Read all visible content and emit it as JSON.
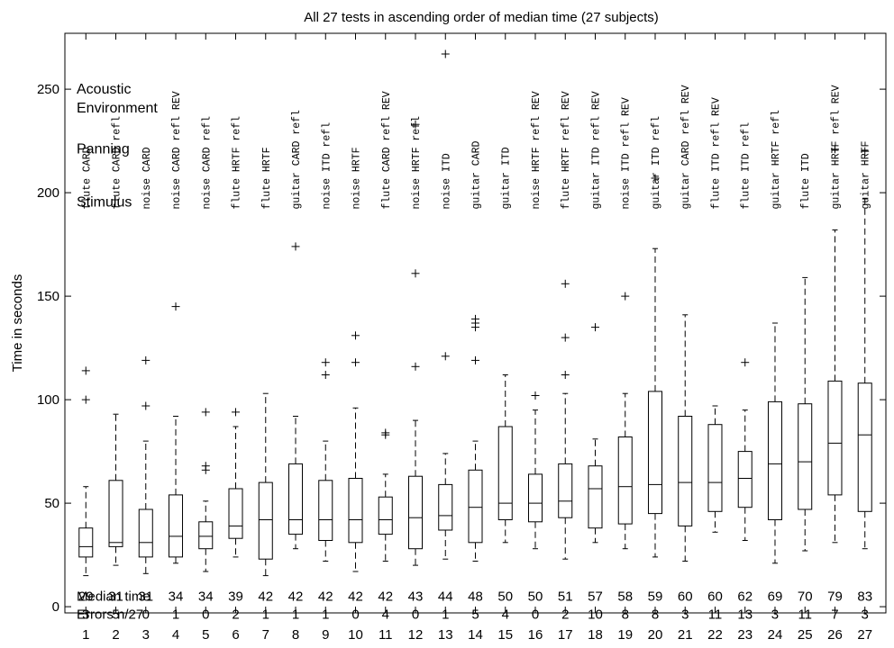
{
  "chart_data": {
    "type": "box",
    "title": "All 27 tests in ascending order of median time (27 subjects)",
    "ylabel": "Time in seconds",
    "xlabel": "",
    "ylim": [
      -3,
      277
    ],
    "xlim": [
      0.3,
      27.7
    ],
    "yticks": [
      0,
      50,
      100,
      150,
      200,
      250
    ],
    "categories": [
      1,
      2,
      3,
      4,
      5,
      6,
      7,
      8,
      9,
      10,
      11,
      12,
      13,
      14,
      15,
      16,
      17,
      18,
      19,
      20,
      21,
      22,
      23,
      24,
      25,
      26,
      27
    ],
    "row_labels": {
      "acoustic": "Acoustic\nEnvironment",
      "panning": "Panning",
      "stimulus": "Stimulus",
      "median": "Median time",
      "errors": "Errors n/27"
    },
    "tests": [
      {
        "stimulus": "flute",
        "panning": "CARD",
        "acoustic": "",
        "median_label": "29",
        "errors": "3",
        "min": 15,
        "q1": 24,
        "median": 29,
        "q3": 38,
        "max": 58,
        "outliers": [
          100,
          114
        ]
      },
      {
        "stimulus": "flute",
        "panning": "CARD",
        "acoustic": "refl",
        "median_label": "31",
        "errors": "5",
        "min": 20,
        "q1": 29,
        "median": 31,
        "q3": 61,
        "max": 93,
        "outliers": []
      },
      {
        "stimulus": "noise",
        "panning": "CARD",
        "acoustic": "",
        "median_label": "31",
        "errors": "0",
        "min": 16,
        "q1": 24,
        "median": 31,
        "q3": 47,
        "max": 80,
        "outliers": [
          97,
          119
        ]
      },
      {
        "stimulus": "noise",
        "panning": "CARD",
        "acoustic": "refl REV",
        "median_label": "34",
        "errors": "1",
        "min": 21,
        "q1": 24,
        "median": 34,
        "q3": 54,
        "max": 92,
        "outliers": [
          145
        ]
      },
      {
        "stimulus": "noise",
        "panning": "CARD",
        "acoustic": "refl",
        "median_label": "34",
        "errors": "0",
        "min": 17,
        "q1": 28,
        "median": 34,
        "q3": 41,
        "max": 51,
        "outliers": [
          66,
          68,
          94
        ]
      },
      {
        "stimulus": "flute",
        "panning": "HRTF",
        "acoustic": "refl",
        "median_label": "39",
        "errors": "2",
        "min": 24,
        "q1": 33,
        "median": 39,
        "q3": 57,
        "max": 87,
        "outliers": [
          94
        ]
      },
      {
        "stimulus": "flute",
        "panning": "HRTF",
        "acoustic": "",
        "median_label": "42",
        "errors": "1",
        "min": 15,
        "q1": 23,
        "median": 42,
        "q3": 60,
        "max": 103,
        "outliers": []
      },
      {
        "stimulus": "guitar",
        "panning": "CARD",
        "acoustic": "refl",
        "median_label": "42",
        "errors": "1",
        "min": 28,
        "q1": 35,
        "median": 42,
        "q3": 69,
        "max": 92,
        "outliers": [
          174
        ]
      },
      {
        "stimulus": "noise",
        "panning": "ITD",
        "acoustic": "refl",
        "median_label": "42",
        "errors": "1",
        "min": 22,
        "q1": 32,
        "median": 42,
        "q3": 61,
        "max": 80,
        "outliers": [
          112,
          118
        ]
      },
      {
        "stimulus": "noise",
        "panning": "HRTF",
        "acoustic": "",
        "median_label": "42",
        "errors": "0",
        "min": 17,
        "q1": 31,
        "median": 42,
        "q3": 62,
        "max": 96,
        "outliers": [
          118,
          131
        ]
      },
      {
        "stimulus": "flute",
        "panning": "CARD",
        "acoustic": "refl REV",
        "median_label": "42",
        "errors": "4",
        "min": 22,
        "q1": 35,
        "median": 42,
        "q3": 53,
        "max": 64,
        "outliers": [
          83,
          84
        ]
      },
      {
        "stimulus": "noise",
        "panning": "HRTF",
        "acoustic": "refl",
        "median_label": "43",
        "errors": "0",
        "min": 20,
        "q1": 28,
        "median": 43,
        "q3": 63,
        "max": 90,
        "outliers": [
          116,
          161,
          233
        ]
      },
      {
        "stimulus": "noise",
        "panning": "ITD",
        "acoustic": "",
        "median_label": "44",
        "errors": "1",
        "min": 23,
        "q1": 37,
        "median": 44,
        "q3": 59,
        "max": 74,
        "outliers": [
          121,
          267
        ]
      },
      {
        "stimulus": "guitar",
        "panning": "CARD",
        "acoustic": "",
        "median_label": "48",
        "errors": "5",
        "min": 22,
        "q1": 31,
        "median": 48,
        "q3": 66,
        "max": 80,
        "outliers": [
          119,
          135,
          137,
          139
        ]
      },
      {
        "stimulus": "guitar",
        "panning": "ITD",
        "acoustic": "",
        "median_label": "50",
        "errors": "4",
        "min": 31,
        "q1": 42,
        "median": 50,
        "q3": 87,
        "max": 112,
        "outliers": []
      },
      {
        "stimulus": "noise",
        "panning": "HRTF",
        "acoustic": "refl REV",
        "median_label": "50",
        "errors": "0",
        "min": 28,
        "q1": 41,
        "median": 50,
        "q3": 64,
        "max": 95,
        "outliers": [
          102
        ]
      },
      {
        "stimulus": "flute",
        "panning": "HRTF",
        "acoustic": "refl REV",
        "median_label": "51",
        "errors": "2",
        "min": 23,
        "q1": 43,
        "median": 51,
        "q3": 69,
        "max": 103,
        "outliers": [
          112,
          130,
          156
        ]
      },
      {
        "stimulus": "guitar",
        "panning": "ITD",
        "acoustic": "refl REV",
        "median_label": "57",
        "errors": "10",
        "min": 31,
        "q1": 38,
        "median": 57,
        "q3": 68,
        "max": 81,
        "outliers": [
          135
        ]
      },
      {
        "stimulus": "noise",
        "panning": "ITD",
        "acoustic": "refl REV",
        "median_label": "58",
        "errors": "8",
        "min": 28,
        "q1": 40,
        "median": 58,
        "q3": 82,
        "max": 103,
        "outliers": [
          150
        ]
      },
      {
        "stimulus": "guitar",
        "panning": "ITD",
        "acoustic": "refl",
        "median_label": "59",
        "errors": "8",
        "min": 24,
        "q1": 45,
        "median": 59,
        "q3": 104,
        "max": 173,
        "outliers": [
          207
        ]
      },
      {
        "stimulus": "guitar",
        "panning": "CARD",
        "acoustic": "refl REV",
        "median_label": "60",
        "errors": "3",
        "min": 22,
        "q1": 39,
        "median": 60,
        "q3": 92,
        "max": 141,
        "outliers": []
      },
      {
        "stimulus": "flute",
        "panning": "ITD",
        "acoustic": "refl REV",
        "median_label": "60",
        "errors": "11",
        "min": 36,
        "q1": 46,
        "median": 60,
        "q3": 88,
        "max": 97,
        "outliers": []
      },
      {
        "stimulus": "flute",
        "panning": "ITD",
        "acoustic": "refl",
        "median_label": "62",
        "errors": "13",
        "min": 32,
        "q1": 48,
        "median": 62,
        "q3": 75,
        "max": 95,
        "outliers": [
          118
        ]
      },
      {
        "stimulus": "guitar",
        "panning": "HRTF",
        "acoustic": "refl",
        "median_label": "69",
        "errors": "3",
        "min": 21,
        "q1": 42,
        "median": 69,
        "q3": 99,
        "max": 137,
        "outliers": []
      },
      {
        "stimulus": "flute",
        "panning": "ITD",
        "acoustic": "",
        "median_label": "70",
        "errors": "11",
        "min": 27,
        "q1": 47,
        "median": 70,
        "q3": 98,
        "max": 159,
        "outliers": []
      },
      {
        "stimulus": "guitar",
        "panning": "HRTF",
        "acoustic": "refl REV",
        "median_label": "79",
        "errors": "7",
        "min": 31,
        "q1": 54,
        "median": 79,
        "q3": 109,
        "max": 182,
        "outliers": [
          221
        ]
      },
      {
        "stimulus": "guitar",
        "panning": "HRTF",
        "acoustic": "",
        "median_label": "83",
        "errors": "3",
        "min": 28,
        "q1": 46,
        "median": 83,
        "q3": 108,
        "max": 197,
        "outliers": [
          220
        ]
      }
    ],
    "grid": false,
    "legend": "none"
  }
}
